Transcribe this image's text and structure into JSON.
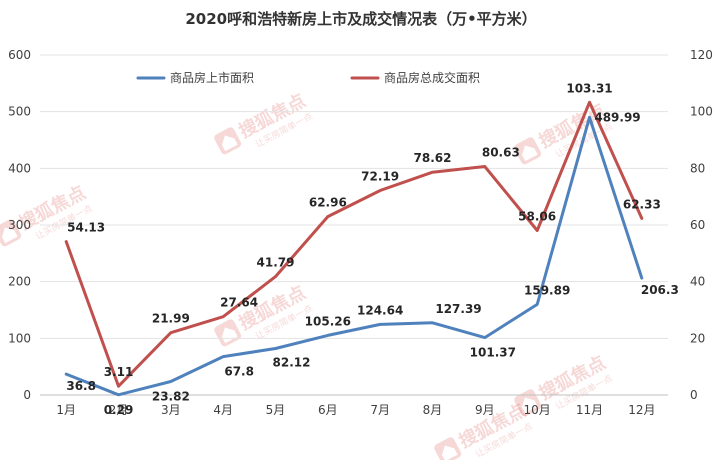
{
  "chart_data": {
    "type": "line",
    "title": "2020呼和浩特新房上市及成交情况表（万•平方米）",
    "categories": [
      "1月",
      "2月",
      "3月",
      "4月",
      "5月",
      "6月",
      "7月",
      "8月",
      "9月",
      "10月",
      "11月",
      "12月"
    ],
    "y_left": {
      "min": 0,
      "max": 600,
      "ticks": [
        0,
        100,
        200,
        300,
        400,
        500,
        600
      ],
      "tick_labels": [
        "0",
        "100",
        "200",
        "300",
        "400",
        "500",
        "600"
      ]
    },
    "y_right": {
      "min": 0,
      "max": 120,
      "ticks": [
        0,
        20,
        40,
        60,
        80,
        100,
        120
      ],
      "tick_labels": [
        "0",
        "20",
        "40",
        "60",
        "80",
        "100",
        "120"
      ]
    },
    "grid": true,
    "legend_position": "top",
    "series": [
      {
        "name": "商品房上市面积",
        "axis": "left",
        "color": "#4f81bd",
        "values": [
          36.8,
          0.29,
          23.82,
          67.8,
          82.12,
          105.26,
          124.64,
          127.39,
          101.37,
          159.89,
          489.99,
          206.3
        ],
        "labels": [
          "36.8",
          "0.29",
          "23.82",
          "67.8",
          "82.12",
          "105.26",
          "124.64",
          "127.39",
          "101.37",
          "159.89",
          "489.99",
          "206.3"
        ]
      },
      {
        "name": "商品房总成交面积",
        "axis": "right",
        "color": "#c0504d",
        "values": [
          54.13,
          3.11,
          21.99,
          27.64,
          41.79,
          62.96,
          72.19,
          78.62,
          80.63,
          58.06,
          103.31,
          62.33
        ],
        "labels": [
          "54.13",
          "3.11",
          "21.99",
          "27.64",
          "41.79",
          "62.96",
          "72.19",
          "78.62",
          "80.63",
          "58.06",
          "103.31",
          "62.33"
        ]
      }
    ]
  },
  "watermark": {
    "brand": "搜狐焦点",
    "slogan": "让买房简单一点"
  }
}
